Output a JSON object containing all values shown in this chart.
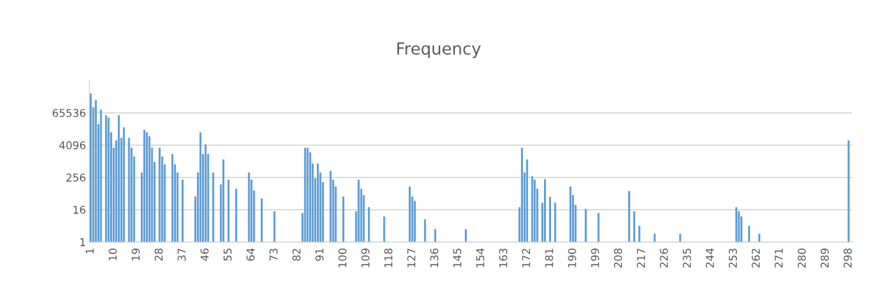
{
  "chart_data": {
    "type": "bar",
    "title": "Frequency",
    "color": "#5b9bd5",
    "log": "y",
    "grid": "y",
    "ylim": [
      1,
      1048576
    ],
    "yticks": [
      1,
      16,
      256,
      4096,
      65536
    ],
    "categories": [
      "1",
      null,
      null,
      null,
      null,
      null,
      null,
      null,
      null,
      "10",
      null,
      null,
      null,
      null,
      null,
      null,
      null,
      null,
      "19",
      null,
      null,
      null,
      null,
      null,
      null,
      null,
      null,
      "28",
      null,
      null,
      null,
      null,
      null,
      null,
      null,
      null,
      "37",
      null,
      null,
      null,
      null,
      null,
      null,
      null,
      null,
      "46",
      null,
      null,
      null,
      null,
      null,
      null,
      null,
      null,
      "55",
      null,
      null,
      null,
      null,
      null,
      null,
      null,
      null,
      "64",
      null,
      null,
      null,
      null,
      null,
      null,
      null,
      null,
      "73",
      null,
      null,
      null,
      null,
      null,
      null,
      null,
      null,
      "82",
      null,
      null,
      null,
      null,
      null,
      null,
      null,
      null,
      "91",
      null,
      null,
      null,
      null,
      null,
      null,
      null,
      null,
      "100",
      null,
      null,
      null,
      null,
      null,
      null,
      null,
      null,
      "109",
      null,
      null,
      null,
      null,
      null,
      null,
      null,
      null,
      "118",
      null,
      null,
      null,
      null,
      null,
      null,
      null,
      null,
      "127",
      null,
      null,
      null,
      null,
      null,
      null,
      null,
      null,
      "136",
      null,
      null,
      null,
      null,
      null,
      null,
      null,
      null,
      "145",
      null,
      null,
      null,
      null,
      null,
      null,
      null,
      null,
      "154",
      null,
      null,
      null,
      null,
      null,
      null,
      null,
      null,
      "163",
      null,
      null,
      null,
      null,
      null,
      null,
      null,
      null,
      "172",
      null,
      null,
      null,
      null,
      null,
      null,
      null,
      null,
      "181",
      null,
      null,
      null,
      null,
      null,
      null,
      null,
      null,
      "190",
      null,
      null,
      null,
      null,
      null,
      null,
      null,
      null,
      "199",
      null,
      null,
      null,
      null,
      null,
      null,
      null,
      null,
      "208",
      null,
      null,
      null,
      null,
      null,
      null,
      null,
      null,
      "217",
      null,
      null,
      null,
      null,
      null,
      null,
      null,
      null,
      "226",
      null,
      null,
      null,
      null,
      null,
      null,
      null,
      null,
      "235",
      null,
      null,
      null,
      null,
      null,
      null,
      null,
      null,
      "244",
      null,
      null,
      null,
      null,
      null,
      null,
      null,
      null,
      "253",
      null,
      null,
      null,
      null,
      null,
      null,
      null,
      null,
      "262",
      null,
      null,
      null,
      null,
      null,
      null,
      null,
      null,
      "271",
      null,
      null,
      null,
      null,
      null,
      null,
      null,
      null,
      "280",
      null,
      null,
      null,
      null,
      null,
      null,
      null,
      null,
      "289",
      null,
      null,
      null,
      null,
      null,
      null,
      null,
      null,
      "298",
      null
    ],
    "values": [
      345000,
      106000,
      199000,
      24800,
      86000,
      null,
      53000,
      43000,
      12400,
      3300,
      6200,
      53000,
      7600,
      18800,
      null,
      7600,
      3300,
      1550,
      null,
      null,
      390,
      15300,
      12400,
      8800,
      3300,
      950,
      null,
      3300,
      1550,
      780,
      null,
      null,
      1900,
      780,
      390,
      null,
      210,
      null,
      null,
      null,
      null,
      50,
      390,
      12400,
      1900,
      4400,
      1900,
      null,
      390,
      null,
      null,
      140,
      1200,
      null,
      210,
      null,
      null,
      97,
      null,
      null,
      null,
      null,
      390,
      210,
      84,
      null,
      null,
      42,
      null,
      null,
      null,
      null,
      14,
      null,
      null,
      null,
      null,
      null,
      null,
      null,
      null,
      null,
      null,
      12,
      3300,
      3300,
      2200,
      830,
      240,
      830,
      390,
      170,
      null,
      null,
      450,
      210,
      117,
      null,
      null,
      50,
      null,
      null,
      null,
      null,
      14,
      210,
      97,
      56,
      null,
      20,
      null,
      null,
      null,
      null,
      null,
      9,
      null,
      null,
      null,
      null,
      null,
      null,
      null,
      null,
      null,
      117,
      50,
      34,
      null,
      null,
      null,
      7,
      null,
      null,
      null,
      3,
      null,
      null,
      null,
      null,
      null,
      null,
      null,
      null,
      null,
      null,
      null,
      3,
      null,
      null,
      null,
      null,
      null,
      null,
      null,
      null,
      null,
      null,
      null,
      null,
      null,
      null,
      null,
      null,
      null,
      null,
      null,
      null,
      20,
      3300,
      390,
      1200,
      null,
      280,
      210,
      97,
      null,
      29,
      220,
      null,
      48,
      null,
      29,
      null,
      null,
      null,
      null,
      null,
      117,
      56,
      24,
      null,
      null,
      null,
      17,
      null,
      null,
      null,
      null,
      12,
      null,
      null,
      null,
      null,
      null,
      null,
      null,
      null,
      null,
      null,
      null,
      80,
      null,
      14,
      null,
      4,
      null,
      null,
      null,
      null,
      null,
      2,
      null,
      null,
      null,
      null,
      null,
      null,
      null,
      null,
      null,
      2,
      null,
      null,
      null,
      null,
      null,
      null,
      null,
      null,
      null,
      null,
      null,
      null,
      null,
      null,
      null,
      null,
      null,
      null,
      null,
      null,
      null,
      20,
      14,
      9,
      null,
      null,
      4,
      null,
      null,
      null,
      2,
      null,
      null,
      null,
      null,
      null,
      null,
      null,
      null,
      null,
      null,
      null,
      null,
      null,
      null,
      null,
      null,
      null,
      null,
      null,
      null,
      null,
      null,
      null,
      null,
      null,
      null,
      null,
      null,
      null,
      null,
      null,
      null,
      null,
      null,
      6200,
      null
    ]
  }
}
